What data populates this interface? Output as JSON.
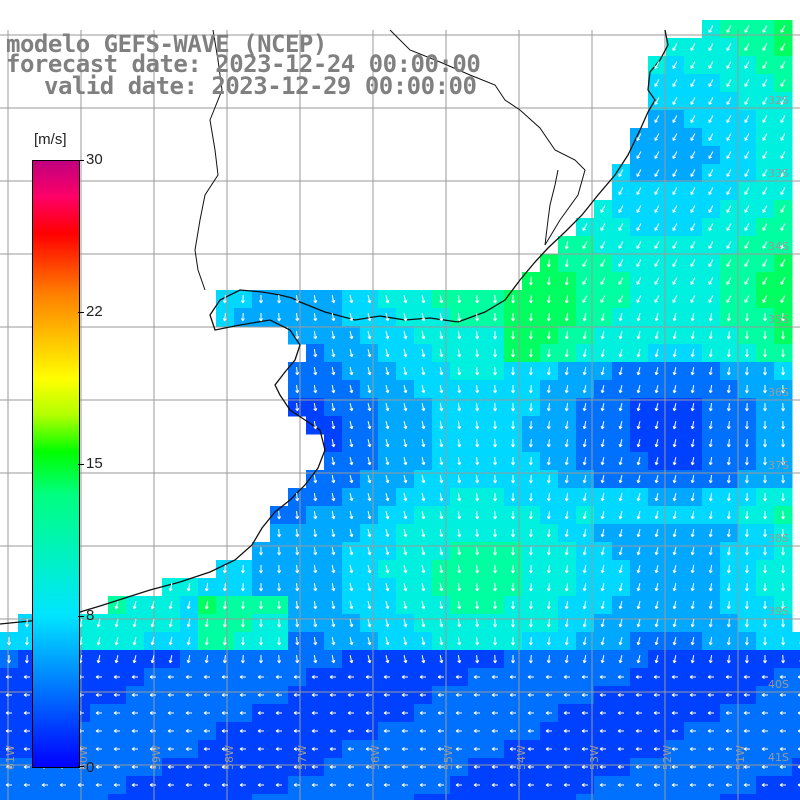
{
  "header": {
    "line1": "modelo GEFS-WAVE (NCEP)",
    "line2": "forecast date: 2023-12-24 00:00:00",
    "line3": "valid date: 2023-12-29 00:00:00"
  },
  "colorbar": {
    "unit": "[m/s]",
    "labels": [
      "30",
      "22",
      "15",
      "8",
      "0"
    ],
    "colors": [
      "#0000ff",
      "#0080ff",
      "#00e5ff",
      "#00ff80",
      "#00ff00",
      "#ffff00",
      "#ff8000",
      "#ff0000",
      "#c00080"
    ]
  },
  "lat_labels": [
    "32S",
    "33S",
    "34S",
    "35S",
    "36S",
    "37S",
    "38S",
    "39S",
    "40S",
    "41S"
  ],
  "lon_labels": [
    "61W",
    "60W",
    "59W",
    "58W",
    "57W",
    "56W",
    "55W",
    "54W",
    "53W",
    "52W",
    "51W"
  ]
}
